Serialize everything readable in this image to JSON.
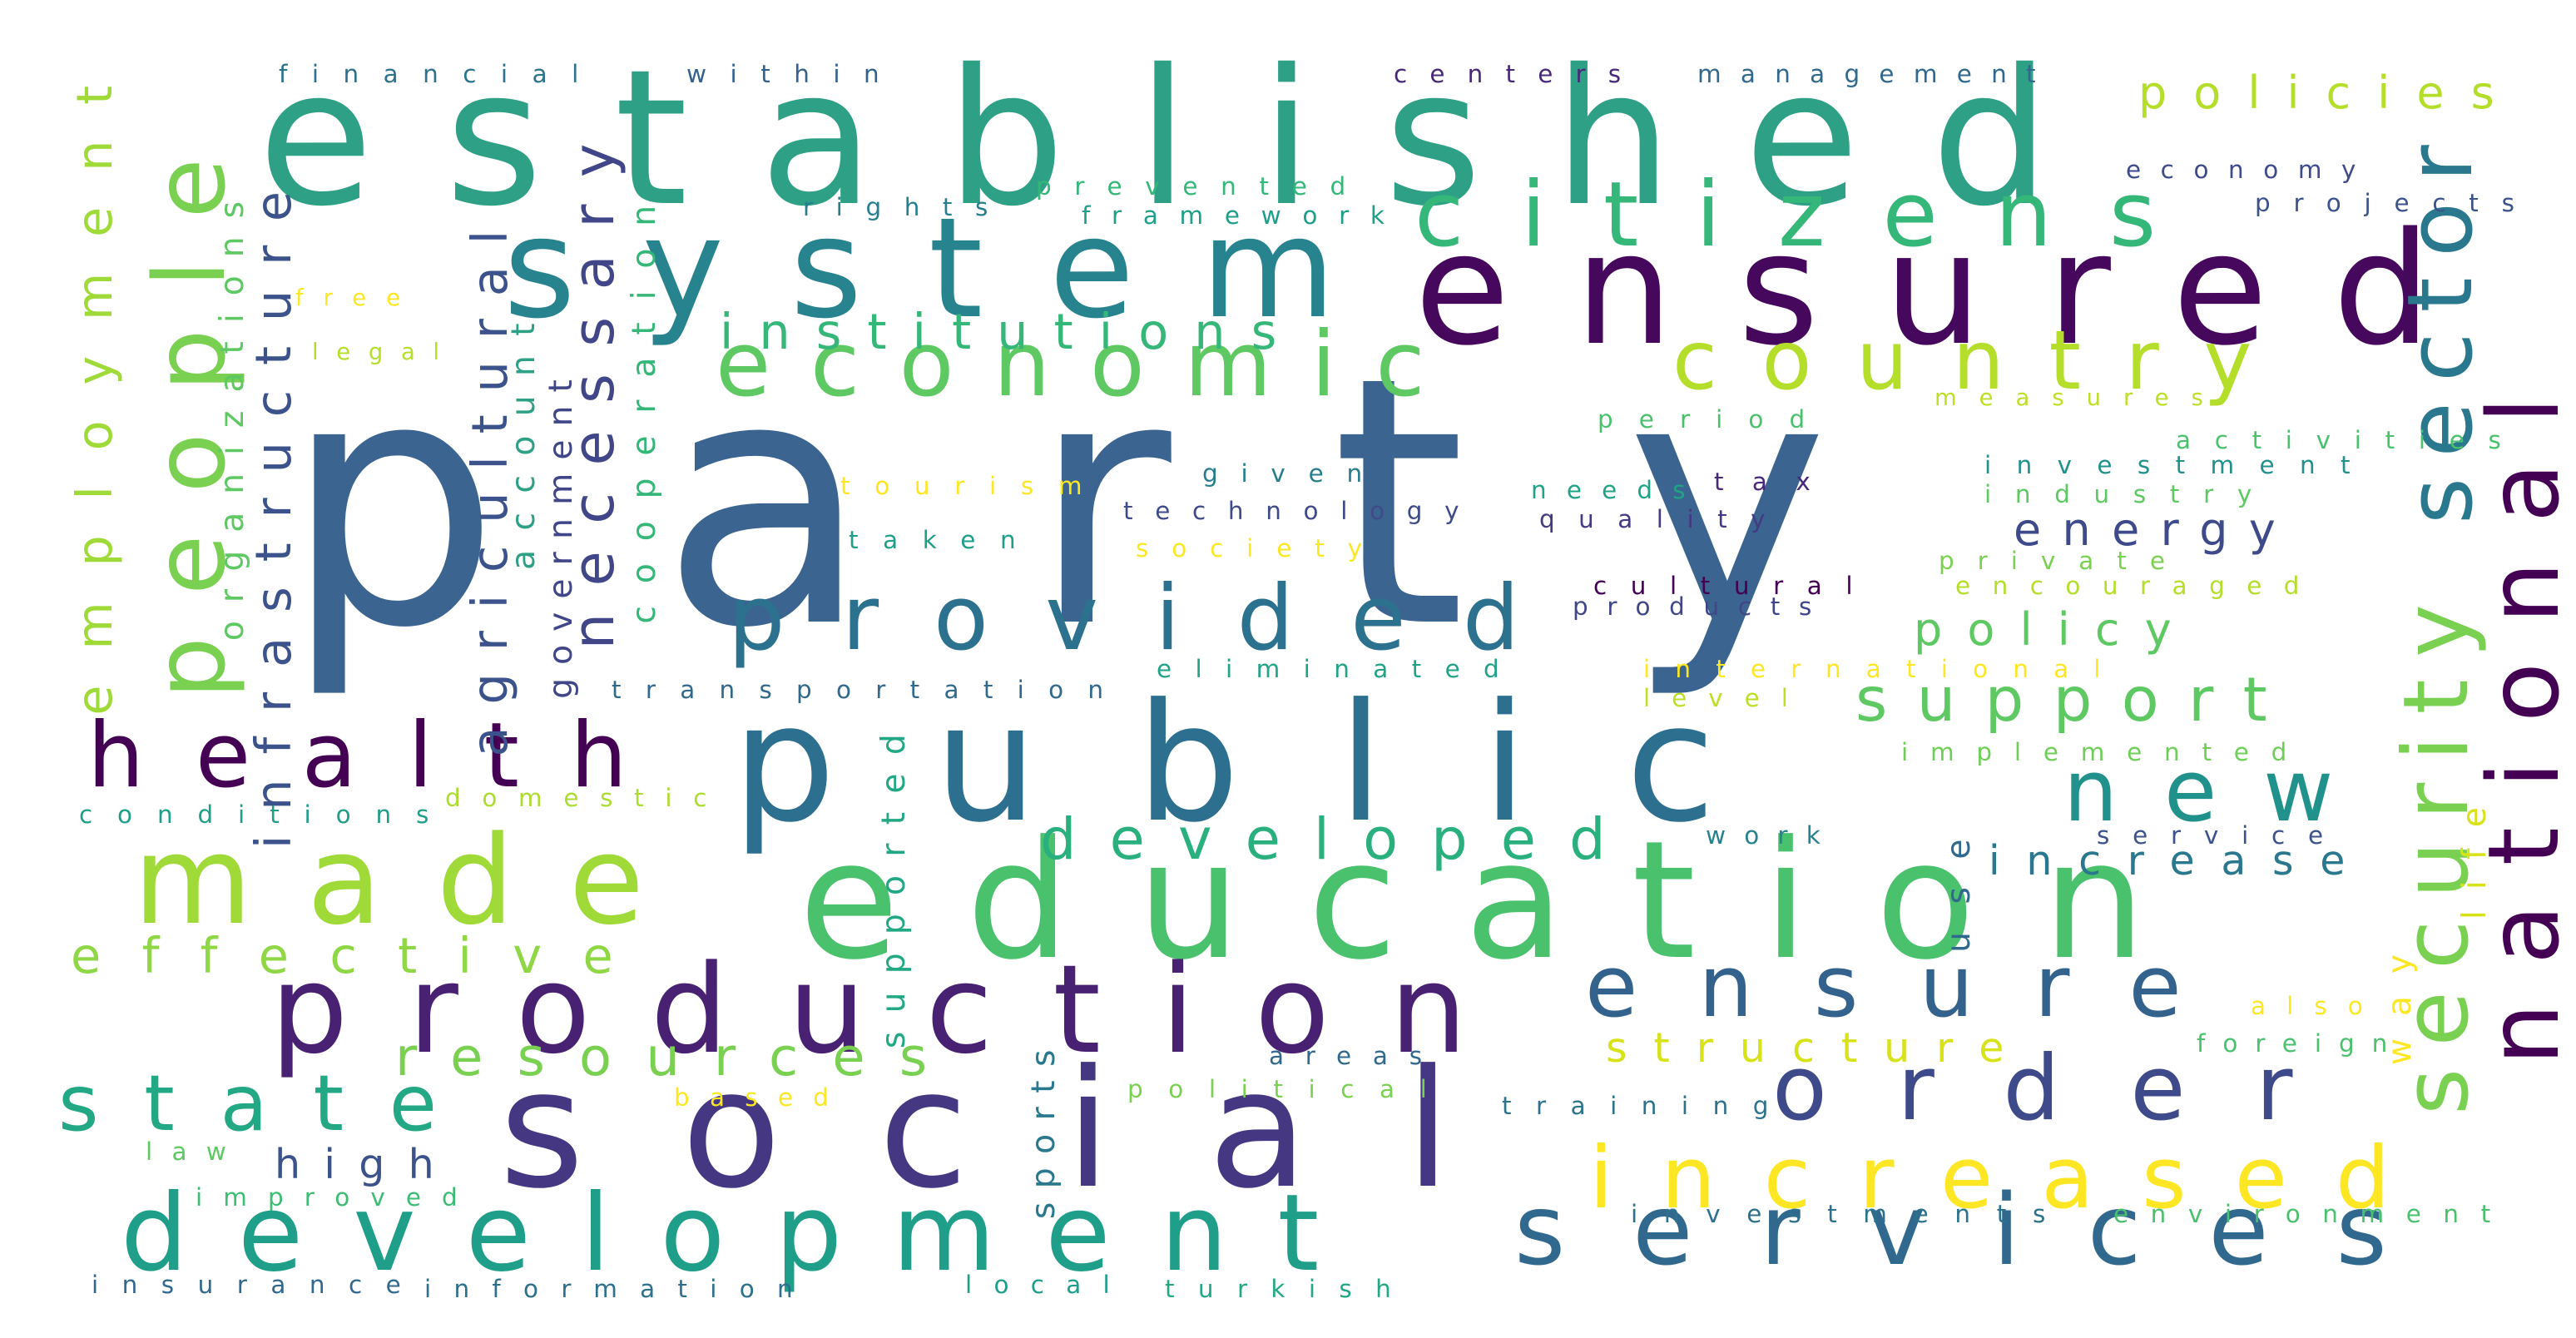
{
  "words": [
    {
      "text": "party",
      "color": "#3b6590"
    },
    {
      "text": "established",
      "color": "#2ea085"
    },
    {
      "text": "system",
      "color": "#27838e"
    },
    {
      "text": "ensured",
      "color": "#46085c"
    },
    {
      "text": "public",
      "color": "#2d6f8e"
    },
    {
      "text": "education",
      "color": "#4ac16d"
    },
    {
      "text": "social",
      "color": "#453781"
    },
    {
      "text": "production",
      "color": "#482173"
    },
    {
      "text": "made",
      "color": "#a0da39"
    },
    {
      "text": "development",
      "color": "#1f9e89"
    },
    {
      "text": "services",
      "color": "#31688e"
    },
    {
      "text": "health",
      "color": "#440154"
    },
    {
      "text": "citizens",
      "color": "#35b779"
    },
    {
      "text": "economic",
      "color": "#5ec962"
    },
    {
      "text": "provided",
      "color": "#2c728e"
    },
    {
      "text": "country",
      "color": "#b5de2b"
    },
    {
      "text": "order",
      "color": "#3e4a89"
    },
    {
      "text": "ensure",
      "color": "#33638d"
    },
    {
      "text": "security",
      "color": "#7ad151"
    },
    {
      "text": "national",
      "color": "#440154"
    },
    {
      "text": "sector",
      "color": "#2a788e"
    },
    {
      "text": "people",
      "color": "#7ad151"
    },
    {
      "text": "increased",
      "color": "#fde725"
    },
    {
      "text": "state",
      "color": "#22a884"
    },
    {
      "text": "new",
      "color": "#21918c"
    },
    {
      "text": "developed",
      "color": "#2ab07f"
    },
    {
      "text": "support",
      "color": "#5ec962"
    },
    {
      "text": "necessary",
      "color": "#404688"
    },
    {
      "text": "agricultural",
      "color": "#3b528b"
    },
    {
      "text": "infrastructure",
      "color": "#3b528b"
    },
    {
      "text": "employment",
      "color": "#a0da39"
    },
    {
      "text": "institutions",
      "color": "#35b779"
    },
    {
      "text": "effective",
      "color": "#8fd744"
    },
    {
      "text": "resources",
      "color": "#7ad151"
    },
    {
      "text": "increase",
      "color": "#2a788e"
    },
    {
      "text": "energy",
      "color": "#3e4a89"
    },
    {
      "text": "policy",
      "color": "#5ec962"
    },
    {
      "text": "policies",
      "color": "#b5de2b"
    },
    {
      "text": "structure",
      "color": "#d8e219"
    },
    {
      "text": "high",
      "color": "#3b528b"
    },
    {
      "text": "financial",
      "color": "#2c728e"
    },
    {
      "text": "within",
      "color": "#33638d"
    },
    {
      "text": "centers",
      "color": "#482878"
    },
    {
      "text": "management",
      "color": "#31688e"
    },
    {
      "text": "economy",
      "color": "#3e4a89"
    },
    {
      "text": "projects",
      "color": "#3b528b"
    },
    {
      "text": "rights",
      "color": "#277f8e"
    },
    {
      "text": "prevented",
      "color": "#35b779"
    },
    {
      "text": "framework",
      "color": "#1f9e89"
    },
    {
      "text": "free",
      "color": "#fde725"
    },
    {
      "text": "legal",
      "color": "#b5de2b"
    },
    {
      "text": "organizations",
      "color": "#5ec962"
    },
    {
      "text": "account",
      "color": "#2ea085"
    },
    {
      "text": "government",
      "color": "#404688"
    },
    {
      "text": "cooperation",
      "color": "#35b779"
    },
    {
      "text": "period",
      "color": "#4ac16d"
    },
    {
      "text": "measures",
      "color": "#bddf26"
    },
    {
      "text": "activities",
      "color": "#4ac16d"
    },
    {
      "text": "investment",
      "color": "#21918c"
    },
    {
      "text": "industry",
      "color": "#5ec962"
    },
    {
      "text": "tourism",
      "color": "#fde725"
    },
    {
      "text": "given",
      "color": "#287d8e"
    },
    {
      "text": "technology",
      "color": "#3e4a89"
    },
    {
      "text": "needs",
      "color": "#20a386"
    },
    {
      "text": "tax",
      "color": "#482878"
    },
    {
      "text": "quality",
      "color": "#443983"
    },
    {
      "text": "taken",
      "color": "#1f9e89"
    },
    {
      "text": "society",
      "color": "#fde725"
    },
    {
      "text": "private",
      "color": "#7ad151"
    },
    {
      "text": "encouraged",
      "color": "#b5de2b"
    },
    {
      "text": "cultural",
      "color": "#440154"
    },
    {
      "text": "products",
      "color": "#404688"
    },
    {
      "text": "transportation",
      "color": "#31688e"
    },
    {
      "text": "eliminated",
      "color": "#20a386"
    },
    {
      "text": "international",
      "color": "#fde725"
    },
    {
      "text": "level",
      "color": "#bddf26"
    },
    {
      "text": "implemented",
      "color": "#6ece58"
    },
    {
      "text": "conditions",
      "color": "#1f9e89"
    },
    {
      "text": "domestic",
      "color": "#addc30"
    },
    {
      "text": "supported",
      "color": "#22a884"
    },
    {
      "text": "work",
      "color": "#26828e"
    },
    {
      "text": "service",
      "color": "#3b528b"
    },
    {
      "text": "use",
      "color": "#31688e"
    },
    {
      "text": "life",
      "color": "#d8e219"
    },
    {
      "text": "way",
      "color": "#fde725"
    },
    {
      "text": "also",
      "color": "#fde725"
    },
    {
      "text": "foreign",
      "color": "#4ac16d"
    },
    {
      "text": "areas",
      "color": "#31688e"
    },
    {
      "text": "sports",
      "color": "#2a788e"
    },
    {
      "text": "based",
      "color": "#fde725"
    },
    {
      "text": "political",
      "color": "#7ad151"
    },
    {
      "text": "training",
      "color": "#2c728e"
    },
    {
      "text": "law",
      "color": "#5ec962"
    },
    {
      "text": "improved",
      "color": "#3dbc74"
    },
    {
      "text": "investments",
      "color": "#2c728e"
    },
    {
      "text": "environment",
      "color": "#4ac16d"
    },
    {
      "text": "insurance",
      "color": "#31688e"
    },
    {
      "text": "information",
      "color": "#2d708e"
    },
    {
      "text": "local",
      "color": "#1f9e89"
    },
    {
      "text": "turkish",
      "color": "#22a884"
    }
  ]
}
